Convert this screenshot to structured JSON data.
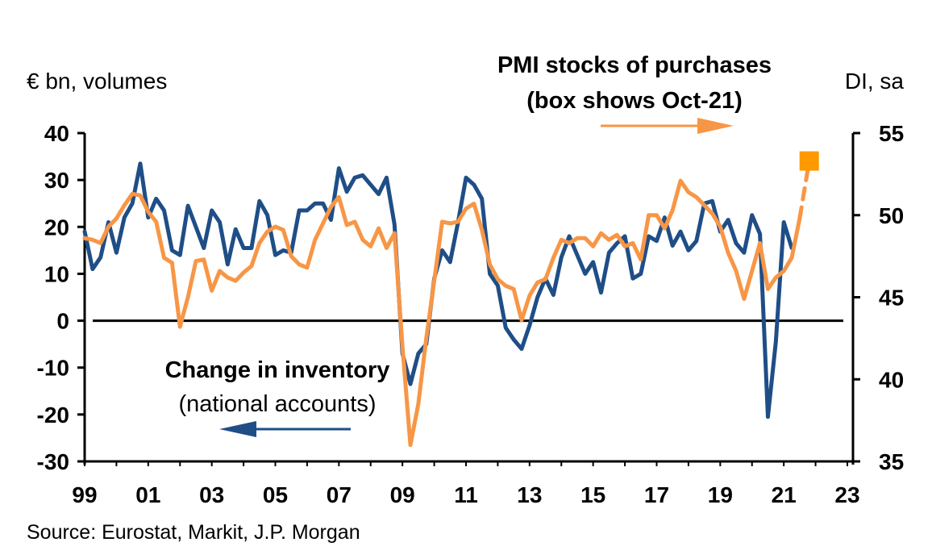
{
  "chart_data": {
    "type": "line",
    "title": "",
    "left_axis": {
      "label": "€ bn, volumes",
      "ylim": [
        -30,
        40
      ],
      "ticks": [
        40,
        30,
        20,
        10,
        0,
        -10,
        -20,
        -30
      ],
      "tick_labels": [
        "40",
        "30",
        "20",
        "10",
        "0",
        "-10",
        "-20",
        "-30"
      ]
    },
    "right_axis": {
      "label": "DI, sa",
      "ylim": [
        35,
        55
      ],
      "ticks": [
        55,
        50,
        45,
        40,
        35
      ],
      "tick_labels": [
        "55",
        "50",
        "45",
        "40",
        "35"
      ]
    },
    "x_axis": {
      "xlim": [
        1999,
        2023
      ],
      "ticks": [
        1999,
        2001,
        2003,
        2005,
        2007,
        2009,
        2011,
        2013,
        2015,
        2017,
        2019,
        2021,
        2023
      ],
      "tick_labels": [
        "99",
        "01",
        "03",
        "05",
        "07",
        "09",
        "11",
        "13",
        "15",
        "17",
        "19",
        "21",
        "23"
      ]
    },
    "zero_line": true,
    "grid": false,
    "series": [
      {
        "name": "Change in inventory (national accounts)",
        "axis": "left",
        "color": "#1f4e87",
        "frequency": "quarterly",
        "start": 1999.0,
        "values": [
          19,
          11,
          13.5,
          21,
          14.5,
          22,
          25,
          33.5,
          22,
          26,
          23.5,
          15,
          14,
          24.5,
          20,
          15.5,
          23.5,
          21,
          12,
          19.5,
          15.5,
          15.5,
          25.5,
          22.5,
          14,
          15,
          14.5,
          23.5,
          23.5,
          25,
          25,
          21.5,
          32.5,
          27.5,
          30.5,
          31,
          29,
          27,
          30.5,
          20.5,
          -7,
          -13.5,
          -7,
          -5,
          9,
          15,
          12.5,
          21,
          30.5,
          29,
          26,
          10,
          7.5,
          -1.5,
          -4,
          -6,
          -1,
          5,
          9,
          5.5,
          13.5,
          18,
          14,
          10,
          12.5,
          6,
          14.5,
          16.5,
          18,
          9,
          10,
          18,
          17,
          22,
          16,
          19,
          15,
          17,
          25,
          25.5,
          19,
          21.5,
          16.5,
          14.5,
          22.5,
          18.5,
          -20.5,
          -4.5,
          21,
          15.5
        ]
      },
      {
        "name": "PMI stocks of purchases",
        "axis": "right",
        "color": "#f79646",
        "frequency": "quarterly",
        "start": 1999.0,
        "values": [
          48.6,
          48.5,
          48.3,
          49.3,
          49.8,
          50.6,
          51.3,
          51.2,
          50.2,
          49.6,
          47.4,
          47.1,
          43.2,
          45.0,
          47.2,
          47.3,
          45.4,
          46.6,
          46.2,
          46.0,
          46.5,
          46.9,
          48.3,
          49.0,
          49.3,
          49.1,
          47.5,
          47.0,
          46.8,
          48.5,
          49.5,
          50.5,
          51.1,
          49.4,
          49.6,
          48.5,
          48.1,
          49.2,
          48.0,
          48.9,
          42.0,
          36.0,
          38.5,
          42.5,
          46.0,
          49.6,
          49.5,
          49.6,
          50.4,
          50.7,
          49.1,
          47.0,
          46.1,
          45.7,
          45.5,
          43.6,
          45.1,
          45.9,
          46.1,
          47.4,
          48.5,
          48.3,
          48.6,
          48.6,
          48.1,
          48.9,
          48.5,
          48.8,
          48.1,
          48.3,
          47.3,
          50.0,
          50.0,
          49.2,
          50.3,
          52.1,
          51.4,
          51.1,
          50.6,
          50.1,
          49.3,
          47.7,
          46.6,
          44.9,
          46.6,
          48.3,
          45.5,
          46.2,
          46.6,
          47.4,
          49.8
        ],
        "projection": {
          "to": 2021.8,
          "value": 53.3,
          "style": "dashed"
        },
        "marker": {
          "label": "Oct-21",
          "x": 2021.8,
          "value": 53.3,
          "shape": "square",
          "color": "#ff9900"
        }
      }
    ],
    "annotations": [
      {
        "text_line1": "PMI stocks of purchases",
        "text_line2": "(box shows Oct-21)",
        "arrow": "right",
        "arrow_color": "#f79646",
        "placement": "top-right"
      },
      {
        "text_line1": "Change in inventory",
        "text_line2": "(national accounts)",
        "arrow": "left",
        "arrow_color": "#1f4e87",
        "placement": "bottom-left"
      }
    ],
    "source": "Source: Eurostat, Markit, J.P. Morgan"
  }
}
